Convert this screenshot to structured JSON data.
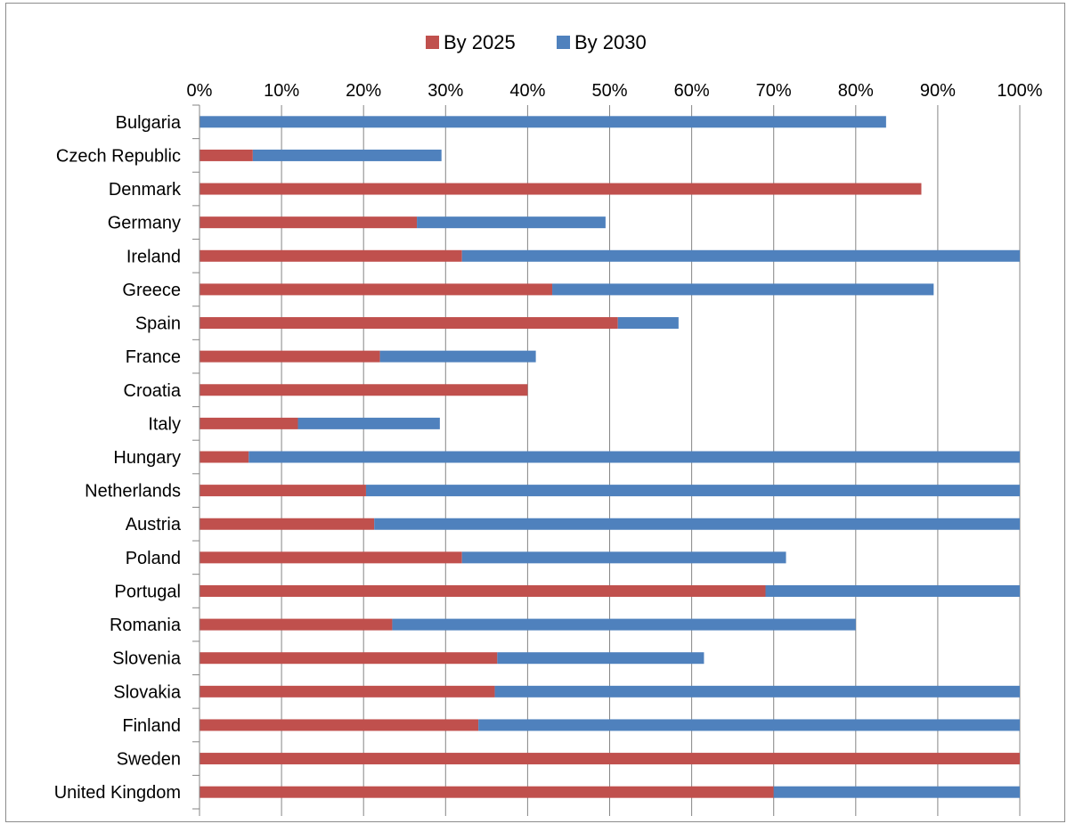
{
  "chart_data": {
    "type": "bar",
    "orientation": "horizontal",
    "stacked": true,
    "title": "",
    "xlabel": "",
    "ylabel": "",
    "xlim": [
      0,
      100
    ],
    "x_ticks": [
      "0%",
      "10%",
      "20%",
      "30%",
      "40%",
      "50%",
      "60%",
      "70%",
      "80%",
      "90%",
      "100%"
    ],
    "x_axis_position": "top",
    "grid": "vertical",
    "legend_position": "top",
    "categories": [
      "Bulgaria",
      "Czech Republic",
      "Denmark",
      "Germany",
      "Ireland",
      "Greece",
      "Spain",
      "France",
      "Croatia",
      "Italy",
      "Hungary",
      "Netherlands",
      "Austria",
      "Poland",
      "Portugal",
      "Romania",
      "Slovenia",
      "Slovakia",
      "Finland",
      "Sweden",
      "United Kingdom"
    ],
    "series": [
      {
        "name": "By 2025",
        "color": "#c0504d",
        "values": [
          0,
          6.5,
          88,
          26.5,
          32,
          43,
          51,
          22,
          40,
          12,
          6,
          20.3,
          21.3,
          32,
          69,
          23.5,
          36.3,
          36,
          34,
          100,
          70
        ]
      },
      {
        "name": "By 2030",
        "color": "#4f81bd",
        "values": [
          83.7,
          23,
          0,
          23,
          68,
          46.5,
          7.4,
          19,
          0,
          17.3,
          94,
          79.7,
          78.7,
          39.5,
          31,
          56.5,
          25.2,
          64,
          66,
          0,
          30
        ]
      }
    ]
  },
  "colors": {
    "grid": "#868686",
    "axis": "#868686"
  }
}
